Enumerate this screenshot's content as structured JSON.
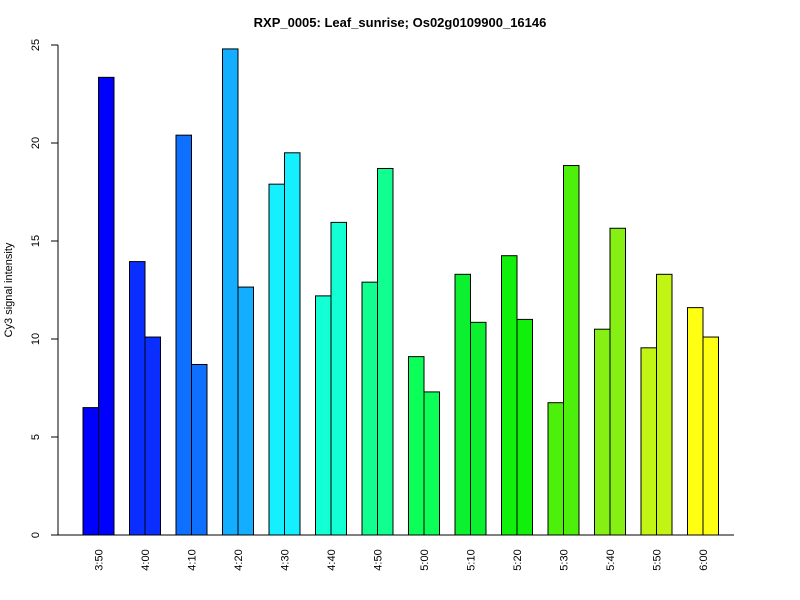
{
  "chart_data": {
    "type": "bar",
    "title": "RXP_0005: Leaf_sunrise; Os02g0109900_16146",
    "xlabel": "",
    "ylabel": "Cy3 signal intensity",
    "ylim": [
      0,
      25
    ],
    "yticks": [
      0,
      5,
      10,
      15,
      20,
      25
    ],
    "grid": false,
    "categories": [
      "3:50",
      "4:00",
      "4:10",
      "4:20",
      "4:30",
      "4:40",
      "4:50",
      "5:00",
      "5:10",
      "5:20",
      "5:30",
      "5:40",
      "5:50",
      "6:00"
    ],
    "series": [
      {
        "values": [
          6.5,
          13.95,
          20.4,
          24.8,
          17.9,
          12.2,
          12.9,
          9.1,
          13.3,
          14.25,
          6.75,
          10.5,
          9.55,
          11.6
        ]
      },
      {
        "values": [
          23.35,
          10.1,
          8.7,
          12.65,
          19.5,
          15.95,
          18.7,
          7.3,
          10.85,
          11.0,
          18.85,
          15.65,
          13.3,
          10.1
        ]
      }
    ],
    "colors": [
      "#0000FF",
      "#0A2EFF",
      "#0F70FF",
      "#13AEFF",
      "#14F0FF",
      "#13FFD4",
      "#10FF90",
      "#0CFF58",
      "#0BF02F",
      "#10F00A",
      "#4DF00A",
      "#86F014",
      "#C3F514",
      "#FFFF14"
    ]
  }
}
